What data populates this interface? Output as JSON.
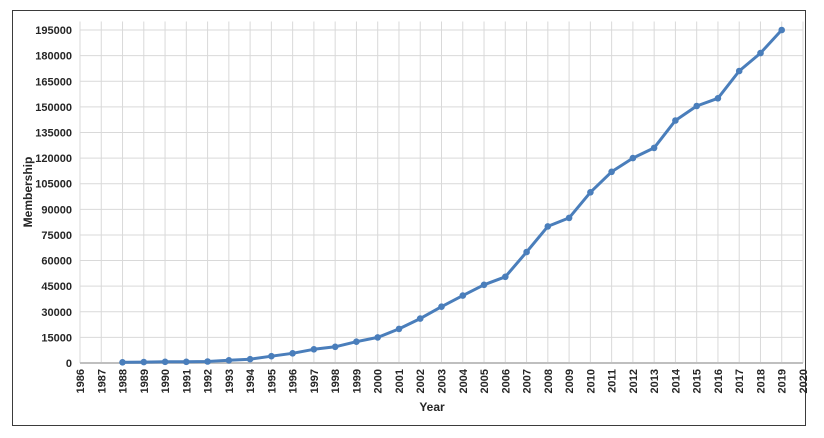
{
  "chart_data": {
    "type": "line",
    "title": "",
    "xlabel": "Year",
    "ylabel": "Membership",
    "categories": [
      1986,
      1987,
      1988,
      1989,
      1990,
      1991,
      1992,
      1993,
      1994,
      1995,
      1996,
      1997,
      1998,
      1999,
      2000,
      2001,
      2002,
      2003,
      2004,
      2005,
      2006,
      2007,
      2008,
      2009,
      2010,
      2011,
      2012,
      2013,
      2014,
      2015,
      2016,
      2017,
      2018,
      2019,
      2020
    ],
    "series": [
      {
        "name": "Membership",
        "x": [
          1988,
          1989,
          1990,
          1991,
          1992,
          1993,
          1994,
          1995,
          1996,
          1997,
          1998,
          1999,
          2000,
          2001,
          2002,
          2003,
          2004,
          2005,
          2006,
          2007,
          2008,
          2009,
          2010,
          2011,
          2012,
          2013,
          2014,
          2015,
          2016,
          2017,
          2018,
          2019
        ],
        "values": [
          400,
          500,
          700,
          700,
          900,
          1600,
          2200,
          4000,
          5700,
          8000,
          9500,
          12500,
          15000,
          20000,
          26000,
          33000,
          39500,
          45800,
          50500,
          65000,
          80000,
          85000,
          100000,
          112000,
          120000,
          126000,
          142000,
          150500,
          155000,
          171000,
          181500,
          195000
        ]
      }
    ],
    "ylim": [
      0,
      200000
    ],
    "ytick_step": 15000,
    "ytick_max": 195000,
    "grid": "both",
    "legend": "none",
    "marker": "circle",
    "colors": {
      "line": "#4a7ebb",
      "gridline": "#d9d9d9",
      "axis_line": "#bfbfbf",
      "text": "#262626",
      "border": "#3b3b3b",
      "background": "#ffffff"
    }
  }
}
